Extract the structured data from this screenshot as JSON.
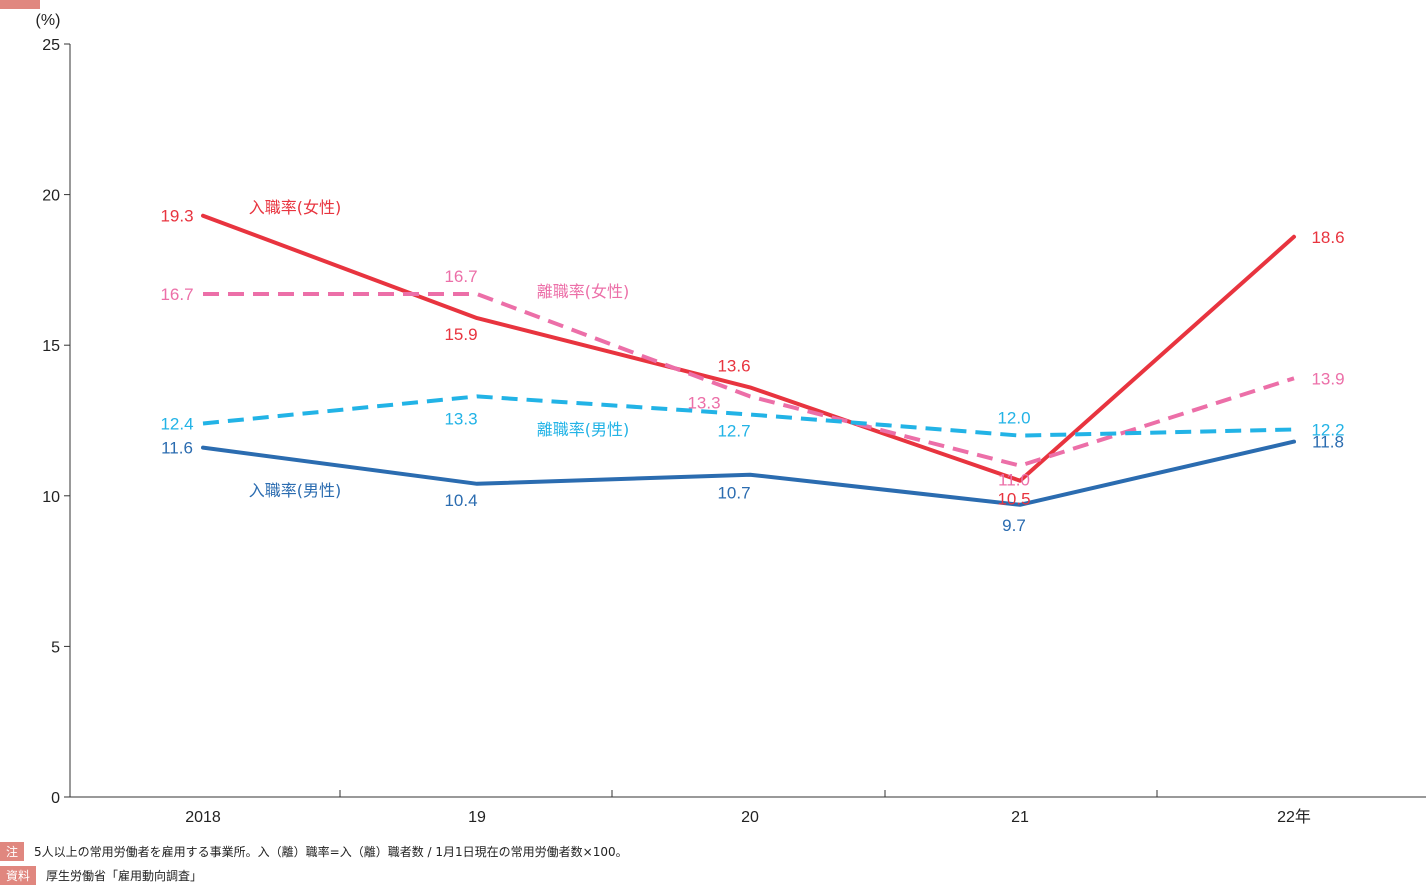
{
  "colors": {
    "female_hire": "#e8343f",
    "female_sep": "#ec6fa8",
    "male_sep": "#22b3e6",
    "male_hire": "#2b6cb0",
    "axis": "#333333",
    "note_tag": "#e0877f"
  },
  "chart_data": {
    "type": "line",
    "y_unit": "(%)",
    "categories": [
      "2018",
      "19",
      "20",
      "21",
      "22年"
    ],
    "ylim": [
      0,
      25
    ],
    "yticks": [
      "0",
      "5",
      "10",
      "15",
      "20",
      "25"
    ],
    "grid": false,
    "series": [
      {
        "name": "入職率(女性)",
        "key": "female_hire",
        "style": "solid",
        "values": [
          19.3,
          15.9,
          13.6,
          10.5,
          18.6
        ],
        "labels": [
          "19.3",
          "15.9",
          "13.6",
          "10.5",
          "18.6"
        ]
      },
      {
        "name": "離職率(女性)",
        "key": "female_sep",
        "style": "dashed",
        "values": [
          16.7,
          16.7,
          13.3,
          11.0,
          13.9
        ],
        "labels": [
          "16.7",
          "16.7",
          "13.3",
          "11.0",
          "13.9"
        ]
      },
      {
        "name": "離職率(男性)",
        "key": "male_sep",
        "style": "dashed",
        "values": [
          12.4,
          13.3,
          12.7,
          12.0,
          12.2
        ],
        "labels": [
          "12.4",
          "13.3",
          "12.7",
          "12.0",
          "12.2"
        ]
      },
      {
        "name": "入職率(男性)",
        "key": "male_hire",
        "style": "solid",
        "values": [
          11.6,
          10.4,
          10.7,
          9.7,
          11.8
        ],
        "labels": [
          "11.6",
          "10.4",
          "10.7",
          "9.7",
          "11.8"
        ]
      }
    ]
  },
  "notes": {
    "note_tag": "注",
    "note_text": "5人以上の常用労働者を雇用する事業所。入（離）職率=入（離）職者数 / 1月1日現在の常用労働者数×100。",
    "source_tag": "資料",
    "source_text": "厚生労働省「雇用動向調査」"
  }
}
